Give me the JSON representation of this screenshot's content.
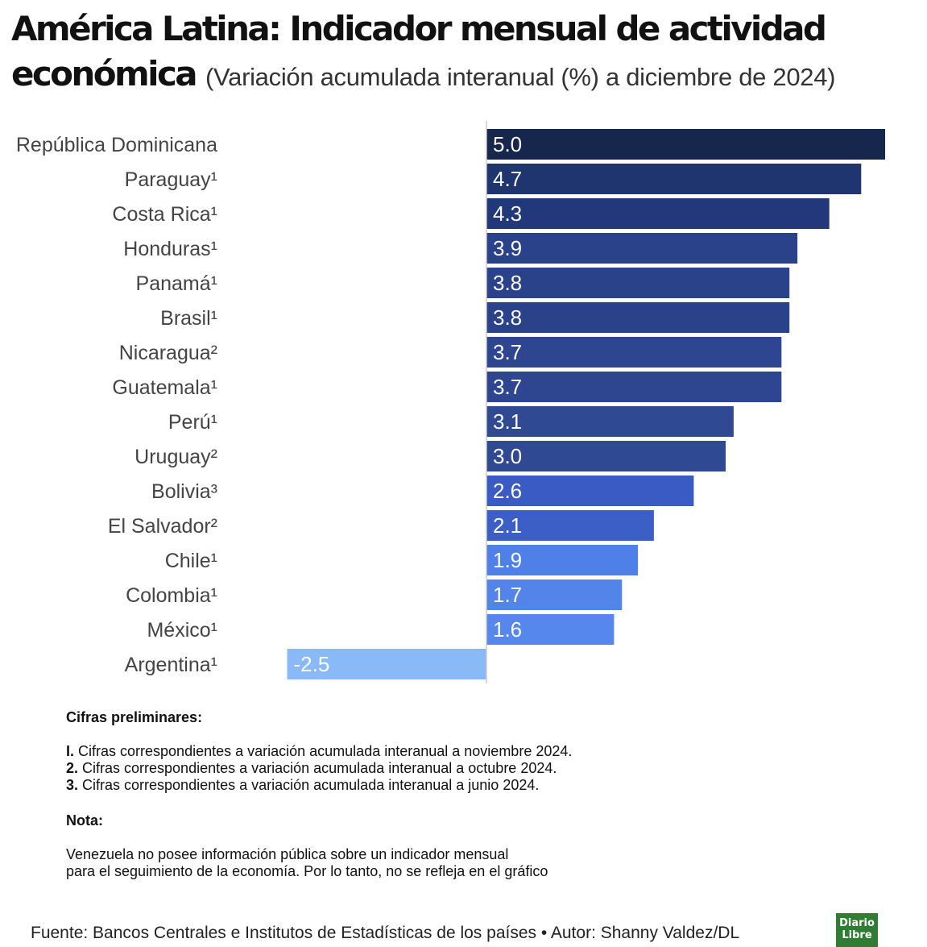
{
  "title": {
    "main": "América Latina: Indicador mensual de actividad económica",
    "subtitle": "(Variación acumulada interanual (%) a diciembre de 2024)"
  },
  "chart_data": {
    "type": "bar",
    "orientation": "horizontal",
    "categories": [
      "República Dominicana",
      "Paraguay¹",
      "Costa Rica¹",
      "Honduras¹",
      "Panamá¹",
      "Brasil¹",
      "Nicaragua²",
      "Guatemala¹",
      "Perú¹",
      "Uruguay²",
      "Bolivia³",
      "El Salvador²",
      "Chile¹",
      "Colombia¹",
      "México¹",
      "Argentina¹"
    ],
    "values": [
      5.0,
      4.7,
      4.3,
      3.9,
      3.8,
      3.8,
      3.7,
      3.7,
      3.1,
      3.0,
      2.6,
      2.1,
      1.9,
      1.7,
      1.6,
      -2.5
    ],
    "value_labels": [
      "5.0",
      "4.7",
      "4.3",
      "3.9",
      "3.8",
      "3.8",
      "3.7",
      "3.7",
      "3.1",
      "3.0",
      "2.6",
      "2.1",
      "1.9",
      "1.7",
      "1.6",
      "-2.5"
    ],
    "colors": [
      "#16264d",
      "#1f3570",
      "#22387a",
      "#2a4289",
      "#2a4289",
      "#2a4289",
      "#2d468f",
      "#2d468f",
      "#2f4993",
      "#2f4993",
      "#3a5bc4",
      "#3c5ec7",
      "#4f80e8",
      "#5384ea",
      "#5587ec",
      "#8ab9f7"
    ],
    "xlim": [
      -2.5,
      5.0
    ],
    "grid": false,
    "legend": "none"
  },
  "notes": {
    "heading": "Cifras preliminares:",
    "items": [
      {
        "mark": "I.",
        "text": " Cifras correspondientes a variación acumulada interanual a noviembre 2024."
      },
      {
        "mark": "2.",
        "text": " Cifras correspondientes a variación acumulada interanual a octubre 2024."
      },
      {
        "mark": "3.",
        "text": " Cifras correspondientes a variación acumulada interanual a junio 2024."
      }
    ],
    "nota_heading": "Nota:",
    "nota_line1": "Venezuela no posee información pública sobre un indicador mensual",
    "nota_line2": "para el seguimiento de la economía. Por lo tanto, no se refleja en el gráfico"
  },
  "source": "Fuente: Bancos Centrales e Institutos de Estadísticas de los países • Autor: Shanny Valdez/DL",
  "logo": {
    "line1": "Diario",
    "line2": "Libre"
  }
}
